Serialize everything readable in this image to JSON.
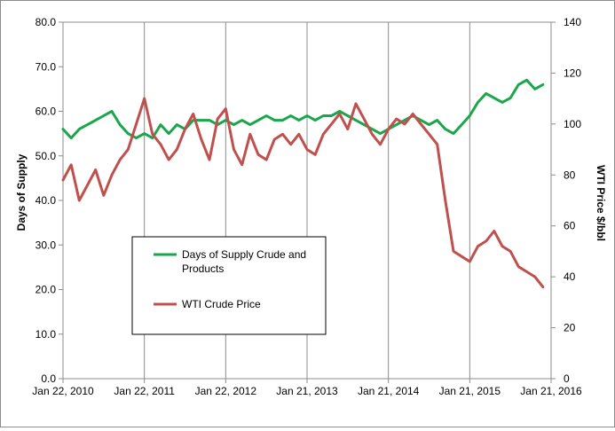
{
  "chart_data": {
    "type": "line",
    "title": "",
    "ylabel": "Days of Supply",
    "y2label": "WTI Price $/bbl",
    "ylim": [
      0,
      80
    ],
    "y2lim": [
      0,
      140
    ],
    "yticks": [
      "0.0",
      "10.0",
      "20.0",
      "30.0",
      "40.0",
      "50.0",
      "60.0",
      "70.0",
      "80.0"
    ],
    "y2ticks": [
      "0",
      "20",
      "40",
      "60",
      "80",
      "100",
      "120",
      "140"
    ],
    "xticks": [
      "Jan 22, 2010",
      "Jan 22, 2011",
      "Jan 22, 2012",
      "Jan 21, 2013",
      "Jan 21, 2014",
      "Jan 21, 2015",
      "Jan 21, 2016"
    ],
    "grid": "vertical",
    "legend_position": "inside-left",
    "series": [
      {
        "name": "Days of Supply Crude and Products",
        "axis": "left",
        "color": "#1aa64b",
        "x": [
          0,
          0.1,
          0.2,
          0.3,
          0.4,
          0.5,
          0.6,
          0.7,
          0.8,
          0.9,
          1.0,
          1.1,
          1.2,
          1.3,
          1.4,
          1.5,
          1.6,
          1.7,
          1.8,
          1.9,
          2.0,
          2.1,
          2.2,
          2.3,
          2.4,
          2.5,
          2.6,
          2.7,
          2.8,
          2.9,
          3.0,
          3.1,
          3.2,
          3.3,
          3.4,
          3.5,
          3.6,
          3.7,
          3.8,
          3.9,
          4.0,
          4.1,
          4.2,
          4.3,
          4.4,
          4.5,
          4.6,
          4.7,
          4.8,
          4.9,
          5.0,
          5.1,
          5.2,
          5.3,
          5.4,
          5.5,
          5.6,
          5.7,
          5.8,
          5.9
        ],
        "values": [
          56,
          54,
          56,
          57,
          58,
          59,
          60,
          57,
          55,
          54,
          55,
          54,
          57,
          55,
          57,
          56,
          58,
          58,
          58,
          57,
          58,
          57,
          58,
          57,
          58,
          59,
          58,
          58,
          59,
          58,
          59,
          58,
          59,
          59,
          60,
          59,
          58,
          57,
          56,
          55,
          56,
          57,
          58,
          59,
          58,
          57,
          58,
          56,
          55,
          57,
          59,
          62,
          64,
          63,
          62,
          63,
          66,
          67,
          65,
          66
        ]
      },
      {
        "name": "WTI Crude Price",
        "axis": "right",
        "color": "#c0504d",
        "x": [
          0,
          0.1,
          0.2,
          0.3,
          0.4,
          0.5,
          0.6,
          0.7,
          0.8,
          0.9,
          1.0,
          1.1,
          1.2,
          1.3,
          1.4,
          1.5,
          1.6,
          1.7,
          1.8,
          1.9,
          2.0,
          2.1,
          2.2,
          2.3,
          2.4,
          2.5,
          2.6,
          2.7,
          2.8,
          2.9,
          3.0,
          3.1,
          3.2,
          3.3,
          3.4,
          3.5,
          3.6,
          3.7,
          3.8,
          3.9,
          4.0,
          4.1,
          4.2,
          4.3,
          4.4,
          4.5,
          4.6,
          4.7,
          4.8,
          4.9,
          5.0,
          5.1,
          5.2,
          5.3,
          5.4,
          5.5,
          5.6,
          5.7,
          5.8,
          5.9
        ],
        "values": [
          78,
          84,
          70,
          76,
          82,
          72,
          80,
          86,
          90,
          100,
          110,
          96,
          92,
          86,
          90,
          98,
          104,
          94,
          86,
          102,
          106,
          90,
          84,
          96,
          88,
          86,
          94,
          96,
          92,
          96,
          90,
          88,
          96,
          100,
          104,
          98,
          108,
          102,
          96,
          92,
          98,
          102,
          100,
          104,
          100,
          96,
          92,
          70,
          50,
          48,
          46,
          52,
          54,
          58,
          52,
          50,
          44,
          42,
          40,
          36
        ]
      }
    ]
  }
}
